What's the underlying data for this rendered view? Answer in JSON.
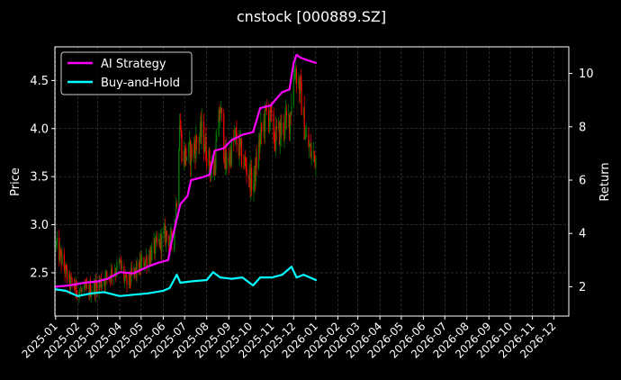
{
  "chart_data": {
    "type": "line",
    "title": "cnstock [000889.SZ]",
    "ylabel": "Price",
    "ylabel_right": "Return",
    "background": "#000000",
    "grid": true,
    "legend_position": "top-left",
    "x_ticks": [
      "2025-01",
      "2025-02",
      "2025-03",
      "2025-04",
      "2025-05",
      "2025-06",
      "2025-07",
      "2025-08",
      "2025-09",
      "2025-10",
      "2025-11",
      "2025-12",
      "2026-01",
      "2026-02",
      "2026-03",
      "2026-04",
      "2026-05",
      "2026-06",
      "2026-07",
      "2026-08",
      "2026-09",
      "2026-10",
      "2026-11",
      "2026-12"
    ],
    "y_left": {
      "ticks": [
        "2.5",
        "3.0",
        "3.5",
        "4.0",
        "4.5"
      ],
      "range": [
        2.05,
        4.85
      ]
    },
    "y_right": {
      "ticks": [
        "2",
        "4",
        "6",
        "8",
        "10"
      ],
      "range": [
        0.9,
        11.0
      ]
    },
    "x_range": [
      "2024-12-31",
      "2026-12-22"
    ],
    "price": {
      "up_color": "#008000",
      "down_color": "#ff0000",
      "anchors": [
        [
          "2025-01-02",
          2.78
        ],
        [
          "2025-01-10",
          2.62
        ],
        [
          "2025-01-20",
          2.4
        ],
        [
          "2025-02-05",
          2.3
        ],
        [
          "2025-02-20",
          2.33
        ],
        [
          "2025-03-05",
          2.4
        ],
        [
          "2025-03-20",
          2.5
        ],
        [
          "2025-04-02",
          2.58
        ],
        [
          "2025-04-10",
          2.38
        ],
        [
          "2025-04-20",
          2.48
        ],
        [
          "2025-05-05",
          2.62
        ],
        [
          "2025-05-20",
          2.75
        ],
        [
          "2025-06-05",
          2.9
        ],
        [
          "2025-06-15",
          2.8
        ],
        [
          "2025-06-20",
          3.3
        ],
        [
          "2025-06-24",
          4.1
        ],
        [
          "2025-06-28",
          3.7
        ],
        [
          "2025-07-10",
          3.75
        ],
        [
          "2025-07-25",
          3.95
        ],
        [
          "2025-08-10",
          3.5
        ],
        [
          "2025-08-20",
          4.2
        ],
        [
          "2025-08-28",
          3.6
        ],
        [
          "2025-09-10",
          3.9
        ],
        [
          "2025-09-20",
          3.7
        ],
        [
          "2025-10-05",
          3.4
        ],
        [
          "2025-10-15",
          3.9
        ],
        [
          "2025-10-25",
          4.2
        ],
        [
          "2025-11-05",
          3.9
        ],
        [
          "2025-11-15",
          4.0
        ],
        [
          "2025-11-25",
          4.1
        ],
        [
          "2025-12-03",
          4.65
        ],
        [
          "2025-12-10",
          4.4
        ],
        [
          "2025-12-18",
          3.9
        ],
        [
          "2025-12-25",
          3.75
        ],
        [
          "2026-01-01",
          3.7
        ]
      ]
    },
    "series": [
      {
        "name": "AI Strategy",
        "color": "#ff00ff",
        "points": [
          [
            "2025-01-01",
            2.0
          ],
          [
            "2025-01-20",
            2.05
          ],
          [
            "2025-02-10",
            2.15
          ],
          [
            "2025-03-01",
            2.2
          ],
          [
            "2025-03-15",
            2.3
          ],
          [
            "2025-04-01",
            2.55
          ],
          [
            "2025-04-20",
            2.5
          ],
          [
            "2025-05-10",
            2.75
          ],
          [
            "2025-05-25",
            2.9
          ],
          [
            "2025-06-08",
            3.0
          ],
          [
            "2025-06-12",
            3.6
          ],
          [
            "2025-06-18",
            4.3
          ],
          [
            "2025-06-25",
            5.1
          ],
          [
            "2025-07-05",
            5.4
          ],
          [
            "2025-07-10",
            6.0
          ],
          [
            "2025-07-25",
            6.1
          ],
          [
            "2025-08-05",
            6.2
          ],
          [
            "2025-08-12",
            7.1
          ],
          [
            "2025-08-25",
            7.2
          ],
          [
            "2025-09-05",
            7.5
          ],
          [
            "2025-09-20",
            7.7
          ],
          [
            "2025-10-05",
            7.8
          ],
          [
            "2025-10-15",
            8.7
          ],
          [
            "2025-10-30",
            8.8
          ],
          [
            "2025-11-05",
            9.0
          ],
          [
            "2025-11-15",
            9.3
          ],
          [
            "2025-11-25",
            9.4
          ],
          [
            "2025-12-01",
            10.4
          ],
          [
            "2025-12-05",
            10.7
          ],
          [
            "2025-12-10",
            10.6
          ],
          [
            "2025-12-20",
            10.5
          ],
          [
            "2026-01-01",
            10.4
          ]
        ]
      },
      {
        "name": "Buy-and-Hold",
        "color": "#00ffff",
        "points": [
          [
            "2025-01-01",
            1.9
          ],
          [
            "2025-01-15",
            1.85
          ],
          [
            "2025-02-01",
            1.65
          ],
          [
            "2025-02-20",
            1.75
          ],
          [
            "2025-03-10",
            1.8
          ],
          [
            "2025-04-01",
            1.65
          ],
          [
            "2025-04-20",
            1.7
          ],
          [
            "2025-05-10",
            1.75
          ],
          [
            "2025-06-01",
            1.85
          ],
          [
            "2025-06-10",
            1.95
          ],
          [
            "2025-06-20",
            2.45
          ],
          [
            "2025-06-25",
            2.15
          ],
          [
            "2025-07-10",
            2.2
          ],
          [
            "2025-08-01",
            2.25
          ],
          [
            "2025-08-10",
            2.55
          ],
          [
            "2025-08-20",
            2.35
          ],
          [
            "2025-09-05",
            2.3
          ],
          [
            "2025-09-20",
            2.35
          ],
          [
            "2025-10-05",
            2.05
          ],
          [
            "2025-10-15",
            2.35
          ],
          [
            "2025-11-01",
            2.35
          ],
          [
            "2025-11-15",
            2.45
          ],
          [
            "2025-11-28",
            2.75
          ],
          [
            "2025-12-05",
            2.35
          ],
          [
            "2025-12-15",
            2.45
          ],
          [
            "2026-01-01",
            2.25
          ]
        ]
      }
    ]
  }
}
